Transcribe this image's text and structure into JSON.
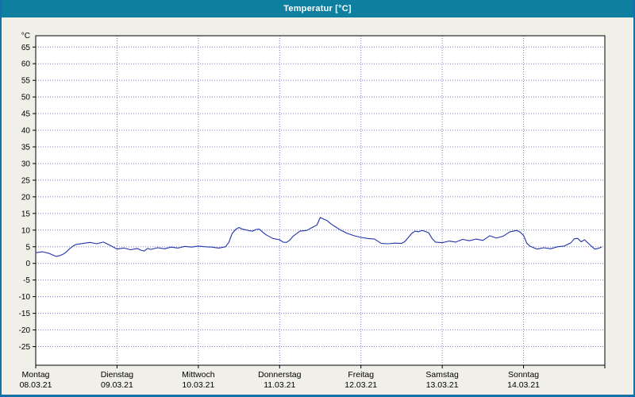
{
  "window": {
    "title": "Temperatur [°C]"
  },
  "colors": {
    "title_bar_bg": "#0f7fa0",
    "title_text": "#ffffff",
    "window_border": "#1670a8",
    "body_bg": "#f0efe8",
    "plot_bg": "#ffffff",
    "grid": "#7b7bd0",
    "axis": "#000000",
    "series_line": "#2233aa"
  },
  "chart_data": {
    "type": "line",
    "title": "Temperatur [°C]",
    "ylabel": "°C",
    "ylim": [
      -30.6,
      68.4
    ],
    "yticks": [
      65,
      60,
      55,
      50,
      45,
      40,
      35,
      30,
      25,
      20,
      15,
      10,
      5,
      0,
      -5,
      -10,
      -15,
      -20,
      -25
    ],
    "grid": true,
    "x_unit": "hours",
    "x_range_hours": [
      0,
      168
    ],
    "x_days": [
      {
        "name": "Montag",
        "date": "08.03.21"
      },
      {
        "name": "Dienstag",
        "date": "09.03.21"
      },
      {
        "name": "Mittwoch",
        "date": "10.03.21"
      },
      {
        "name": "Donnerstag",
        "date": "11.03.21"
      },
      {
        "name": "Freitag",
        "date": "12.03.21"
      },
      {
        "name": "Samstag",
        "date": "13.03.21"
      },
      {
        "name": "Sonntag",
        "date": "14.03.21"
      }
    ],
    "series": [
      {
        "name": "Temperatur",
        "color": "#2233aa",
        "points": [
          [
            0,
            3.2
          ],
          [
            2,
            3.5
          ],
          [
            4,
            3.0
          ],
          [
            6,
            2.1
          ],
          [
            7,
            2.3
          ],
          [
            8,
            2.7
          ],
          [
            9,
            3.4
          ],
          [
            10,
            4.4
          ],
          [
            11,
            5.2
          ],
          [
            12,
            5.7
          ],
          [
            14,
            6.0
          ],
          [
            16,
            6.3
          ],
          [
            18,
            5.9
          ],
          [
            20,
            6.4
          ],
          [
            22,
            5.4
          ],
          [
            24,
            4.3
          ],
          [
            26,
            4.6
          ],
          [
            28,
            4.1
          ],
          [
            30,
            4.5
          ],
          [
            31,
            4.0
          ],
          [
            32,
            3.7
          ],
          [
            33,
            4.5
          ],
          [
            34,
            4.2
          ],
          [
            36,
            4.7
          ],
          [
            38,
            4.4
          ],
          [
            40,
            4.9
          ],
          [
            42,
            4.6
          ],
          [
            44,
            5.1
          ],
          [
            46,
            4.9
          ],
          [
            48,
            5.2
          ],
          [
            50,
            5.0
          ],
          [
            52,
            4.9
          ],
          [
            54,
            4.6
          ],
          [
            56,
            5.0
          ],
          [
            57,
            6.3
          ],
          [
            58,
            9.0
          ],
          [
            59,
            10.2
          ],
          [
            60,
            10.8
          ],
          [
            61,
            10.3
          ],
          [
            62,
            10.1
          ],
          [
            63,
            9.8
          ],
          [
            64,
            9.7
          ],
          [
            65,
            10.2
          ],
          [
            66,
            10.3
          ],
          [
            67,
            9.4
          ],
          [
            68,
            8.6
          ],
          [
            70,
            7.5
          ],
          [
            72,
            7.1
          ],
          [
            73,
            6.4
          ],
          [
            74,
            6.3
          ],
          [
            75,
            7.0
          ],
          [
            76,
            8.2
          ],
          [
            78,
            9.7
          ],
          [
            80,
            9.9
          ],
          [
            82,
            11.0
          ],
          [
            83,
            11.5
          ],
          [
            84,
            13.8
          ],
          [
            85,
            13.3
          ],
          [
            86,
            12.9
          ],
          [
            87,
            12.0
          ],
          [
            88,
            11.3
          ],
          [
            90,
            10.0
          ],
          [
            92,
            9.0
          ],
          [
            94,
            8.3
          ],
          [
            96,
            7.8
          ],
          [
            98,
            7.5
          ],
          [
            100,
            7.3
          ],
          [
            102,
            6.0
          ],
          [
            104,
            5.9
          ],
          [
            106,
            6.1
          ],
          [
            108,
            6.0
          ],
          [
            109,
            6.6
          ],
          [
            110,
            7.8
          ],
          [
            111,
            9.0
          ],
          [
            112,
            9.7
          ],
          [
            113,
            9.5
          ],
          [
            114,
            9.9
          ],
          [
            115,
            9.6
          ],
          [
            116,
            9.2
          ],
          [
            117,
            7.5
          ],
          [
            118,
            6.4
          ],
          [
            120,
            6.2
          ],
          [
            122,
            6.7
          ],
          [
            124,
            6.4
          ],
          [
            126,
            7.2
          ],
          [
            128,
            6.8
          ],
          [
            130,
            7.3
          ],
          [
            132,
            6.9
          ],
          [
            134,
            8.3
          ],
          [
            136,
            7.6
          ],
          [
            138,
            8.2
          ],
          [
            140,
            9.5
          ],
          [
            142,
            9.9
          ],
          [
            143,
            9.4
          ],
          [
            144,
            8.4
          ],
          [
            145,
            6.0
          ],
          [
            146,
            5.1
          ],
          [
            148,
            4.3
          ],
          [
            150,
            4.7
          ],
          [
            152,
            4.4
          ],
          [
            154,
            5.0
          ],
          [
            156,
            5.2
          ],
          [
            158,
            6.2
          ],
          [
            159,
            7.4
          ],
          [
            160,
            7.5
          ],
          [
            161,
            6.5
          ],
          [
            162,
            7.1
          ],
          [
            164,
            5.2
          ],
          [
            165,
            4.3
          ],
          [
            166,
            4.5
          ],
          [
            167,
            4.9
          ]
        ]
      }
    ]
  }
}
